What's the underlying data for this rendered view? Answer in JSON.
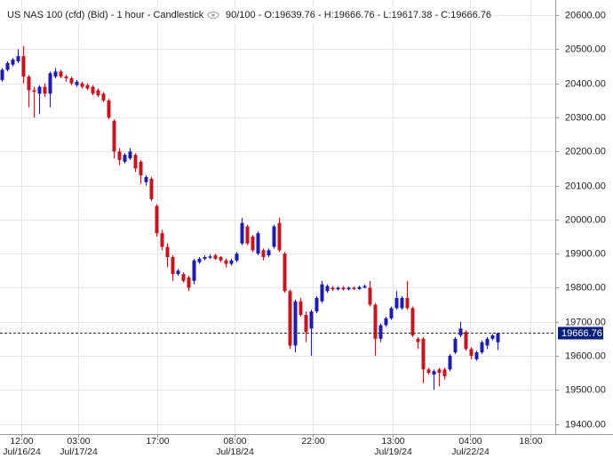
{
  "chart_data": {
    "type": "candlestick",
    "title": "US NAS 100 (cfd) (Bid) - 1 hour - Candlestick",
    "info": "90/100 - O:19639.76 - H:19666.76 - L:19617.38 - C:19666.76",
    "up_color": "#1c1cb4",
    "down_color": "#c8141e",
    "grid": true,
    "ylim": [
      19370,
      20645
    ],
    "xlim": [
      -0.333,
      103.83
    ],
    "yticks": [
      {
        "value": 19400,
        "label": "19400.00"
      },
      {
        "value": 19500,
        "label": "19500.00"
      },
      {
        "value": 19600,
        "label": "19600.00"
      },
      {
        "value": 19700,
        "label": "19700.00"
      },
      {
        "value": 19800,
        "label": "19800.00"
      },
      {
        "value": 19900,
        "label": "19900.00"
      },
      {
        "value": 20000,
        "label": "20000.00"
      },
      {
        "value": 20100,
        "label": "20100.00"
      },
      {
        "value": 20200,
        "label": "20200.00"
      },
      {
        "value": 20300,
        "label": "20300.00"
      },
      {
        "value": 20400,
        "label": "20400.00"
      },
      {
        "value": 20500,
        "label": "20500.00"
      },
      {
        "value": 20600,
        "label": "20600.00"
      }
    ],
    "xticks": [
      {
        "value": 3.7,
        "label": "12:00",
        "date": "Jul/16/24"
      },
      {
        "value": 14.3,
        "label": "03:00",
        "date": "Jul/17/24"
      },
      {
        "value": 29.2,
        "label": "17:00"
      },
      {
        "value": 43.7,
        "label": "08:00",
        "date": "Jul/18/24"
      },
      {
        "value": 58.3,
        "label": "22:00"
      },
      {
        "value": 73.3,
        "label": "13:00",
        "date": "Jul/19/24"
      },
      {
        "value": 87.8,
        "label": "04:00",
        "date": "Jul/22/24"
      },
      {
        "value": 99.2,
        "label": "18:00"
      }
    ],
    "last_price": 19666.76,
    "open": [
      20410,
      20440,
      20455,
      20465,
      20480,
      20420,
      20380,
      20370,
      20390,
      20370,
      20420,
      20435,
      20420,
      20415,
      20395,
      20400,
      20395,
      20390,
      20380,
      20370,
      20350,
      20290,
      20200,
      20170,
      20180,
      20190,
      20170,
      20110,
      20120,
      20040,
      19960,
      19920,
      19890,
      19840,
      19840,
      19830,
      19820,
      19875,
      19885,
      19888,
      19895,
      19890,
      19880,
      19870,
      19880,
      19930,
      19980,
      19950,
      19900,
      19910,
      19895,
      19920,
      19990,
      19900,
      19790,
      19630,
      19760,
      19720,
      19680,
      19730,
      19760,
      19790,
      19800,
      19795,
      19800,
      19795,
      19800,
      19796,
      19800,
      19800,
      19750,
      19650,
      19690,
      19710,
      19740,
      19740,
      19770,
      19740,
      19650,
      19650,
      19560,
      19545,
      19560,
      19560,
      19560,
      19610,
      19660,
      19670,
      19620,
      19590,
      19610,
      19630,
      19650,
      19639.76
    ],
    "high": [
      20445,
      20465,
      20475,
      20500,
      20510,
      20425,
      20390,
      20395,
      20400,
      20435,
      20445,
      20440,
      20425,
      20420,
      20410,
      20405,
      20400,
      20395,
      20385,
      20375,
      20355,
      20295,
      20210,
      20195,
      20210,
      20195,
      20175,
      20130,
      20125,
      20045,
      19970,
      19930,
      19895,
      19855,
      19845,
      19835,
      19885,
      19890,
      19895,
      19898,
      19900,
      19893,
      19885,
      19885,
      19905,
      20005,
      19985,
      19955,
      19965,
      19915,
      19915,
      19985,
      20005,
      19905,
      19795,
      19765,
      19770,
      19730,
      19735,
      19775,
      19820,
      19810,
      19805,
      19803,
      19804,
      19803,
      19803,
      19806,
      19810,
      19820,
      19755,
      19695,
      19715,
      19745,
      19790,
      19775,
      19820,
      19745,
      19655,
      19655,
      19565,
      19560,
      19565,
      19565,
      19605,
      19655,
      19700,
      19675,
      19625,
      19615,
      19645,
      19655,
      19665,
      19666.76
    ],
    "low": [
      20405,
      20435,
      20450,
      20460,
      20400,
      20330,
      20300,
      20310,
      20360,
      20330,
      20415,
      20415,
      20405,
      20395,
      20390,
      20385,
      20380,
      20365,
      20360,
      20345,
      20295,
      20180,
      20160,
      20165,
      20175,
      20140,
      20105,
      20100,
      20055,
      19950,
      19910,
      19860,
      19820,
      19835,
      19815,
      19790,
      19810,
      19870,
      19880,
      19884,
      19882,
      19875,
      19860,
      19865,
      19875,
      19925,
      19925,
      19905,
      19895,
      19880,
      19890,
      19915,
      19905,
      19785,
      19620,
      19610,
      19715,
      19640,
      19600,
      19725,
      19755,
      19785,
      19790,
      19792,
      19792,
      19792,
      19793,
      19794,
      19798,
      19745,
      19600,
      19640,
      19685,
      19705,
      19735,
      19735,
      19735,
      19655,
      19620,
      19520,
      19545,
      19500,
      19510,
      19530,
      19555,
      19605,
      19655,
      19615,
      19590,
      19585,
      19605,
      19620,
      19645,
      19617.38
    ],
    "close": [
      20440,
      20460,
      20470,
      20480,
      20420,
      20380,
      20375,
      20390,
      20370,
      20430,
      20435,
      20420,
      20415,
      20400,
      20405,
      20390,
      20385,
      20370,
      20365,
      20350,
      20300,
      20200,
      20175,
      20190,
      20200,
      20150,
      20130,
      20125,
      20060,
      19960,
      19920,
      19890,
      19840,
      19850,
      19820,
      19800,
      19880,
      19885,
      19890,
      19892,
      19885,
      19880,
      19870,
      19880,
      19900,
      19990,
      19930,
      19910,
      19960,
      19890,
      19910,
      19980,
      19910,
      19790,
      19630,
      19760,
      19720,
      19670,
      19730,
      19770,
      19810,
      19805,
      19795,
      19800,
      19795,
      19800,
      19796,
      19802,
      19805,
      19750,
      19650,
      19690,
      19710,
      19740,
      19770,
      19770,
      19740,
      19660,
      19640,
      19560,
      19550,
      19555,
      19550,
      19540,
      19600,
      19650,
      19680,
      19620,
      19600,
      19610,
      19640,
      19650,
      19660,
      19666.76
    ]
  }
}
